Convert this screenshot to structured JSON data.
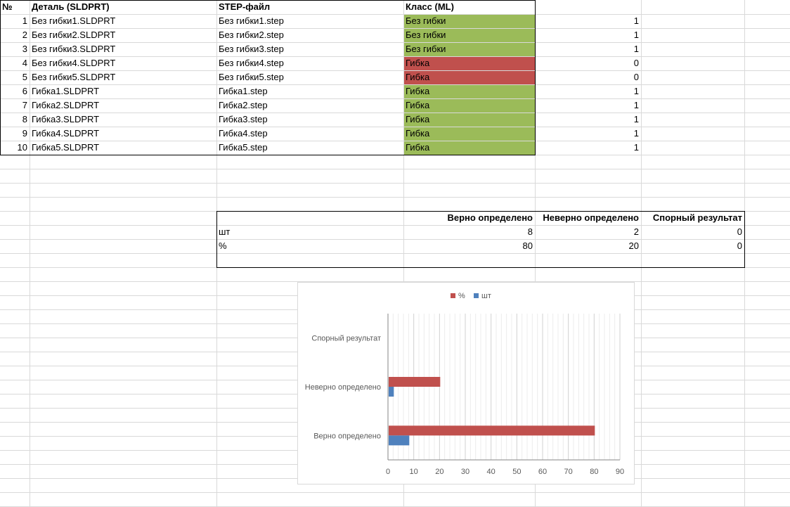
{
  "parts_table": {
    "headers": {
      "num": "№",
      "part": "Деталь (SLDPRT)",
      "step": "STEP-файл",
      "cls": "Класс (ML)"
    },
    "rows": [
      {
        "n": "1",
        "part": "Без гибки1.SLDPRT",
        "step": "Без гибки1.step",
        "cls": "Без гибки",
        "flag": "1",
        "status": "correct"
      },
      {
        "n": "2",
        "part": "Без гибки2.SLDPRT",
        "step": "Без гибки2.step",
        "cls": "Без гибки",
        "flag": "1",
        "status": "correct"
      },
      {
        "n": "3",
        "part": "Без гибки3.SLDPRT",
        "step": "Без гибки3.step",
        "cls": "Без гибки",
        "flag": "1",
        "status": "correct"
      },
      {
        "n": "4",
        "part": "Без гибки4.SLDPRT",
        "step": "Без гибки4.step",
        "cls": "Гибка",
        "flag": "0",
        "status": "wrong"
      },
      {
        "n": "5",
        "part": "Без гибки5.SLDPRT",
        "step": "Без гибки5.step",
        "cls": "Гибка",
        "flag": "0",
        "status": "wrong"
      },
      {
        "n": "6",
        "part": "Гибка1.SLDPRT",
        "step": "Гибка1.step",
        "cls": "Гибка",
        "flag": "1",
        "status": "correct"
      },
      {
        "n": "7",
        "part": "Гибка2.SLDPRT",
        "step": "Гибка2.step",
        "cls": "Гибка",
        "flag": "1",
        "status": "correct"
      },
      {
        "n": "8",
        "part": "Гибка3.SLDPRT",
        "step": "Гибка3.step",
        "cls": "Гибка",
        "flag": "1",
        "status": "correct"
      },
      {
        "n": "9",
        "part": "Гибка4.SLDPRT",
        "step": "Гибка4.step",
        "cls": "Гибка",
        "flag": "1",
        "status": "correct"
      },
      {
        "n": "10",
        "part": "Гибка5.SLDPRT",
        "step": "Гибка5.step",
        "cls": "Гибка",
        "flag": "1",
        "status": "correct"
      }
    ]
  },
  "summary_table": {
    "headers": [
      "Верно определено",
      "Неверно определено",
      "Спорный результат"
    ],
    "rows": [
      {
        "label": "шт",
        "values": [
          "8",
          "2",
          "0"
        ]
      },
      {
        "label": "%",
        "values": [
          "80",
          "20",
          "0"
        ]
      }
    ]
  },
  "colors": {
    "correct": "#9bbb59",
    "wrong": "#c0504d",
    "series_pct": "#c0504d",
    "series_cnt": "#4f81bd",
    "gridline": "#d9d9d9"
  },
  "chart_data": {
    "type": "bar",
    "orientation": "horizontal",
    "categories": [
      "Верно определено",
      "Неверно определено",
      "Спорный результат"
    ],
    "series": [
      {
        "name": "%",
        "values": [
          80,
          20,
          0
        ]
      },
      {
        "name": "шт",
        "values": [
          8,
          2,
          0
        ]
      }
    ],
    "xlim": [
      0,
      90
    ],
    "xticks": [
      "0",
      "10",
      "20",
      "30",
      "40",
      "50",
      "60",
      "70",
      "80",
      "90"
    ],
    "legend_position": "top",
    "grid": true
  }
}
